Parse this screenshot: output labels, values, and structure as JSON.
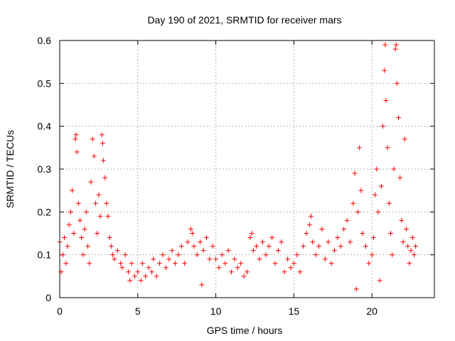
{
  "chart_data": {
    "type": "scatter",
    "title": "Day 190 of 2021, SRMTID for receiver mars",
    "xlabel": "GPS time / hours",
    "ylabel": "SRMTID / TECUs",
    "xlim": [
      0,
      24
    ],
    "ylim": [
      0,
      0.6
    ],
    "xticks": [
      0,
      5,
      10,
      15,
      20
    ],
    "xtick_labels": [
      "0",
      "5",
      "10",
      "15",
      "20"
    ],
    "yticks": [
      0,
      0.1,
      0.2,
      0.3,
      0.4,
      0.5,
      0.6
    ],
    "ytick_labels": [
      "0",
      "0.1",
      "0.2",
      "0.3",
      "0.4",
      "0.5",
      "0.6"
    ],
    "grid": true,
    "marker": "plus",
    "series": [
      {
        "name": "SRMTID",
        "color": "#ff0000",
        "points": [
          [
            0.0,
            0.13
          ],
          [
            0.1,
            0.06
          ],
          [
            0.2,
            0.1
          ],
          [
            0.3,
            0.14
          ],
          [
            0.4,
            0.08
          ],
          [
            0.5,
            0.12
          ],
          [
            0.6,
            0.17
          ],
          [
            0.7,
            0.2
          ],
          [
            0.8,
            0.25
          ],
          [
            0.9,
            0.15
          ],
          [
            1.0,
            0.37
          ],
          [
            1.05,
            0.38
          ],
          [
            1.1,
            0.34
          ],
          [
            1.2,
            0.22
          ],
          [
            1.3,
            0.18
          ],
          [
            1.4,
            0.14
          ],
          [
            1.5,
            0.1
          ],
          [
            1.6,
            0.16
          ],
          [
            1.7,
            0.2
          ],
          [
            1.8,
            0.12
          ],
          [
            1.9,
            0.08
          ],
          [
            2.0,
            0.27
          ],
          [
            2.1,
            0.37
          ],
          [
            2.2,
            0.33
          ],
          [
            2.3,
            0.22
          ],
          [
            2.4,
            0.15
          ],
          [
            2.5,
            0.24
          ],
          [
            2.6,
            0.19
          ],
          [
            2.7,
            0.38
          ],
          [
            2.75,
            0.36
          ],
          [
            2.8,
            0.32
          ],
          [
            2.9,
            0.28
          ],
          [
            3.0,
            0.22
          ],
          [
            3.1,
            0.19
          ],
          [
            3.2,
            0.14
          ],
          [
            3.3,
            0.12
          ],
          [
            3.4,
            0.1
          ],
          [
            3.5,
            0.09
          ],
          [
            3.7,
            0.11
          ],
          [
            3.9,
            0.08
          ],
          [
            4.0,
            0.07
          ],
          [
            4.2,
            0.1
          ],
          [
            4.4,
            0.06
          ],
          [
            4.5,
            0.04
          ],
          [
            4.6,
            0.08
          ],
          [
            4.8,
            0.05
          ],
          [
            5.0,
            0.06
          ],
          [
            5.2,
            0.04
          ],
          [
            5.3,
            0.08
          ],
          [
            5.5,
            0.05
          ],
          [
            5.7,
            0.07
          ],
          [
            5.9,
            0.06
          ],
          [
            6.0,
            0.09
          ],
          [
            6.2,
            0.05
          ],
          [
            6.4,
            0.08
          ],
          [
            6.6,
            0.1
          ],
          [
            6.8,
            0.07
          ],
          [
            7.0,
            0.09
          ],
          [
            7.2,
            0.11
          ],
          [
            7.4,
            0.08
          ],
          [
            7.6,
            0.1
          ],
          [
            7.8,
            0.12
          ],
          [
            8.0,
            0.08
          ],
          [
            8.2,
            0.13
          ],
          [
            8.4,
            0.16
          ],
          [
            8.5,
            0.15
          ],
          [
            8.6,
            0.12
          ],
          [
            8.8,
            0.1
          ],
          [
            9.0,
            0.13
          ],
          [
            9.1,
            0.03
          ],
          [
            9.2,
            0.11
          ],
          [
            9.4,
            0.14
          ],
          [
            9.6,
            0.09
          ],
          [
            9.8,
            0.12
          ],
          [
            10.0,
            0.09
          ],
          [
            10.2,
            0.07
          ],
          [
            10.4,
            0.1
          ],
          [
            10.6,
            0.08
          ],
          [
            10.8,
            0.11
          ],
          [
            11.0,
            0.06
          ],
          [
            11.2,
            0.09
          ],
          [
            11.4,
            0.07
          ],
          [
            11.6,
            0.08
          ],
          [
            11.8,
            0.05
          ],
          [
            12.0,
            0.06
          ],
          [
            12.2,
            0.14
          ],
          [
            12.3,
            0.15
          ],
          [
            12.4,
            0.11
          ],
          [
            12.6,
            0.12
          ],
          [
            12.8,
            0.09
          ],
          [
            13.0,
            0.13
          ],
          [
            13.2,
            0.1
          ],
          [
            13.4,
            0.12
          ],
          [
            13.6,
            0.14
          ],
          [
            13.8,
            0.08
          ],
          [
            14.0,
            0.11
          ],
          [
            14.2,
            0.13
          ],
          [
            14.4,
            0.06
          ],
          [
            14.6,
            0.09
          ],
          [
            14.8,
            0.07
          ],
          [
            15.0,
            0.08
          ],
          [
            15.2,
            0.1
          ],
          [
            15.4,
            0.06
          ],
          [
            15.6,
            0.12
          ],
          [
            15.8,
            0.15
          ],
          [
            16.0,
            0.17
          ],
          [
            16.1,
            0.19
          ],
          [
            16.2,
            0.13
          ],
          [
            16.4,
            0.1
          ],
          [
            16.6,
            0.12
          ],
          [
            16.8,
            0.16
          ],
          [
            17.0,
            0.09
          ],
          [
            17.2,
            0.13
          ],
          [
            17.4,
            0.08
          ],
          [
            17.6,
            0.11
          ],
          [
            17.8,
            0.14
          ],
          [
            18.0,
            0.12
          ],
          [
            18.2,
            0.16
          ],
          [
            18.4,
            0.18
          ],
          [
            18.6,
            0.13
          ],
          [
            18.8,
            0.22
          ],
          [
            18.9,
            0.29
          ],
          [
            19.0,
            0.02
          ],
          [
            19.1,
            0.2
          ],
          [
            19.2,
            0.35
          ],
          [
            19.3,
            0.25
          ],
          [
            19.4,
            0.15
          ],
          [
            19.6,
            0.12
          ],
          [
            19.8,
            0.08
          ],
          [
            20.0,
            0.1
          ],
          [
            20.1,
            0.14
          ],
          [
            20.2,
            0.24
          ],
          [
            20.3,
            0.3
          ],
          [
            20.4,
            0.2
          ],
          [
            20.5,
            0.04
          ],
          [
            20.6,
            0.26
          ],
          [
            20.7,
            0.4
          ],
          [
            20.8,
            0.53
          ],
          [
            20.85,
            0.59
          ],
          [
            20.9,
            0.46
          ],
          [
            21.0,
            0.35
          ],
          [
            21.1,
            0.22
          ],
          [
            21.2,
            0.15
          ],
          [
            21.3,
            0.1
          ],
          [
            21.4,
            0.3
          ],
          [
            21.5,
            0.58
          ],
          [
            21.55,
            0.59
          ],
          [
            21.6,
            0.5
          ],
          [
            21.7,
            0.42
          ],
          [
            21.8,
            0.28
          ],
          [
            21.9,
            0.18
          ],
          [
            22.0,
            0.13
          ],
          [
            22.1,
            0.37
          ],
          [
            22.2,
            0.16
          ],
          [
            22.3,
            0.12
          ],
          [
            22.4,
            0.08
          ],
          [
            22.5,
            0.11
          ],
          [
            22.6,
            0.14
          ],
          [
            22.7,
            0.1
          ],
          [
            22.8,
            0.12
          ]
        ]
      }
    ]
  }
}
